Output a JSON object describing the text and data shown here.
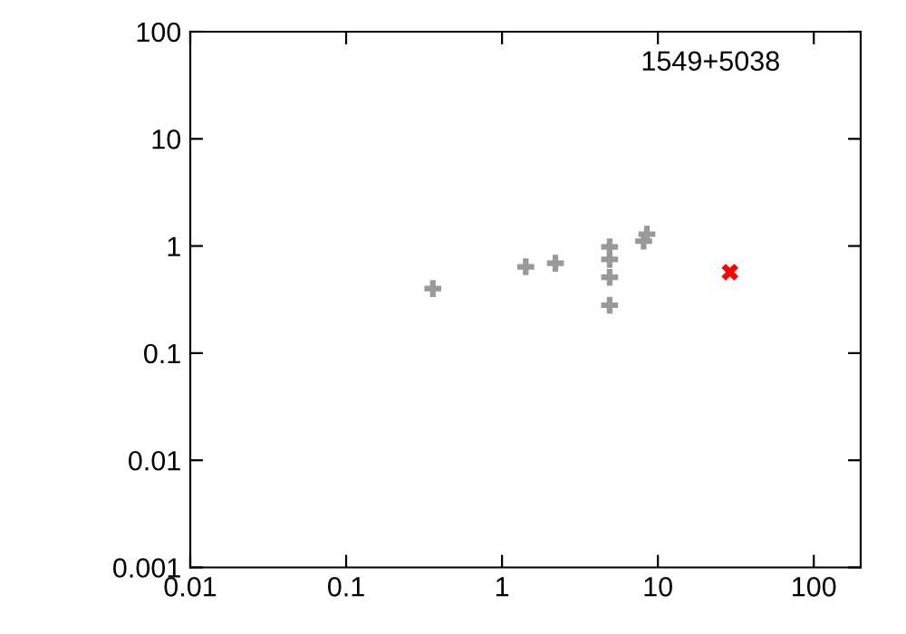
{
  "chart_data": {
    "type": "scatter",
    "log": "xy",
    "xlim": [
      0.01,
      200
    ],
    "ylim": [
      0.001,
      100
    ],
    "xticks": [
      0.01,
      0.1,
      1,
      10,
      100
    ],
    "yticks": [
      0.001,
      0.01,
      0.1,
      1,
      10,
      100
    ],
    "grid": false,
    "legend": false,
    "annotations": [
      "1549+5038"
    ],
    "series": [
      {
        "color": "#999999",
        "marker": "cross",
        "x": [
          0.36,
          1.42,
          2.2,
          4.9,
          4.9,
          4.9,
          4.9,
          8.5,
          8.1
        ],
        "values": [
          0.4,
          0.64,
          0.69,
          0.98,
          0.75,
          0.51,
          0.28,
          1.29,
          1.11
        ]
      },
      {
        "color": "#ff0000",
        "marker": "x",
        "x": [
          29
        ],
        "values": [
          0.57
        ]
      }
    ]
  }
}
